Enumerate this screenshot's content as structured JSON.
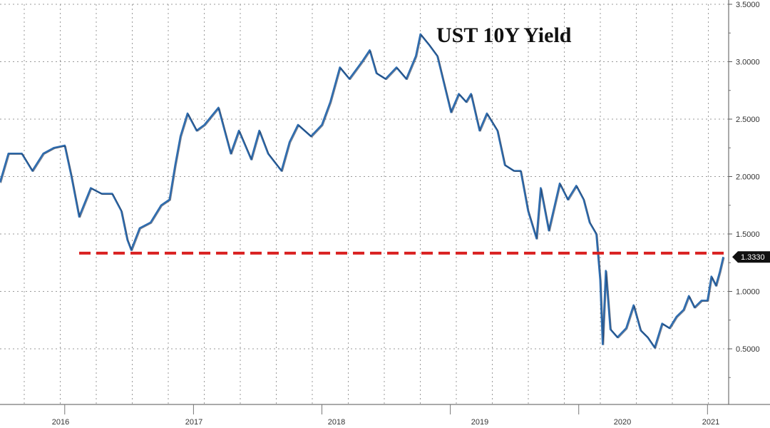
{
  "chart_data": {
    "type": "line",
    "title": "UST 10Y Yield",
    "xlabel": "",
    "ylabel": "",
    "x_ticks": [
      "2016",
      "2017",
      "2018",
      "2019",
      "2020",
      "2021"
    ],
    "y_ticks": [
      "0.5000",
      "1.0000",
      "1.5000",
      "2.0000",
      "2.5000",
      "3.0000",
      "3.5000"
    ],
    "ylim": [
      0.2,
      3.5
    ],
    "xlim": [
      "2015-07-01",
      "2021-02-20"
    ],
    "grid": true,
    "series": [
      {
        "color": "#2e6db0",
        "x": [
          "2015-07-01",
          "2015-07-25",
          "2015-09-01",
          "2015-10-01",
          "2015-11-01",
          "2015-12-01",
          "2016-01-01",
          "2016-01-20",
          "2016-02-11",
          "2016-03-15",
          "2016-04-15",
          "2016-05-15",
          "2016-06-10",
          "2016-06-27",
          "2016-07-08",
          "2016-08-01",
          "2016-09-01",
          "2016-10-01",
          "2016-10-25",
          "2016-11-10",
          "2016-11-25",
          "2016-12-15",
          "2017-01-10",
          "2017-02-01",
          "2017-03-13",
          "2017-04-17",
          "2017-05-10",
          "2017-06-14",
          "2017-07-07",
          "2017-08-01",
          "2017-09-08",
          "2017-10-01",
          "2017-10-25",
          "2017-12-01",
          "2018-01-01",
          "2018-01-25",
          "2018-02-21",
          "2018-03-20",
          "2018-04-25",
          "2018-05-17",
          "2018-06-05",
          "2018-07-01",
          "2018-08-01",
          "2018-08-29",
          "2018-09-25",
          "2018-10-08",
          "2018-11-01",
          "2018-11-25",
          "2018-12-15",
          "2019-01-03",
          "2019-01-25",
          "2019-02-15",
          "2019-03-01",
          "2019-03-25",
          "2019-04-15",
          "2019-05-15",
          "2019-06-05",
          "2019-07-01",
          "2019-07-20",
          "2019-08-10",
          "2019-09-03",
          "2019-09-15",
          "2019-10-08",
          "2019-11-08",
          "2019-12-01",
          "2019-12-25",
          "2020-01-15",
          "2020-02-01",
          "2020-02-20",
          "2020-03-02",
          "2020-03-09",
          "2020-03-18",
          "2020-03-31",
          "2020-04-20",
          "2020-05-15",
          "2020-06-05",
          "2020-06-25",
          "2020-07-15",
          "2020-08-04",
          "2020-08-25",
          "2020-09-15",
          "2020-10-05",
          "2020-10-25",
          "2020-11-09",
          "2020-11-25",
          "2020-12-15",
          "2021-01-01",
          "2021-01-12",
          "2021-01-25",
          "2021-02-05",
          "2021-02-15"
        ],
        "y": [
          1.95,
          2.2,
          2.2,
          2.05,
          2.2,
          2.25,
          2.27,
          2.0,
          1.65,
          1.9,
          1.85,
          1.85,
          1.7,
          1.45,
          1.36,
          1.55,
          1.6,
          1.75,
          1.8,
          2.1,
          2.35,
          2.55,
          2.4,
          2.45,
          2.6,
          2.2,
          2.4,
          2.15,
          2.4,
          2.2,
          2.05,
          2.3,
          2.45,
          2.35,
          2.45,
          2.65,
          2.95,
          2.85,
          3.0,
          3.1,
          2.9,
          2.85,
          2.95,
          2.85,
          3.05,
          3.24,
          3.15,
          3.05,
          2.8,
          2.56,
          2.72,
          2.65,
          2.72,
          2.4,
          2.55,
          2.4,
          2.1,
          2.05,
          2.05,
          1.7,
          1.46,
          1.9,
          1.53,
          1.94,
          1.8,
          1.92,
          1.8,
          1.6,
          1.5,
          1.1,
          0.54,
          1.18,
          0.67,
          0.6,
          0.68,
          0.88,
          0.66,
          0.6,
          0.51,
          0.72,
          0.68,
          0.78,
          0.84,
          0.96,
          0.86,
          0.92,
          0.92,
          1.13,
          1.05,
          1.17,
          1.3
        ]
      }
    ],
    "reference_line": {
      "value": 1.333,
      "color": "#d92121",
      "style": "dashed",
      "from": "2016-02-11"
    },
    "last_value_label": "1.3330",
    "label_color": "#111111"
  }
}
